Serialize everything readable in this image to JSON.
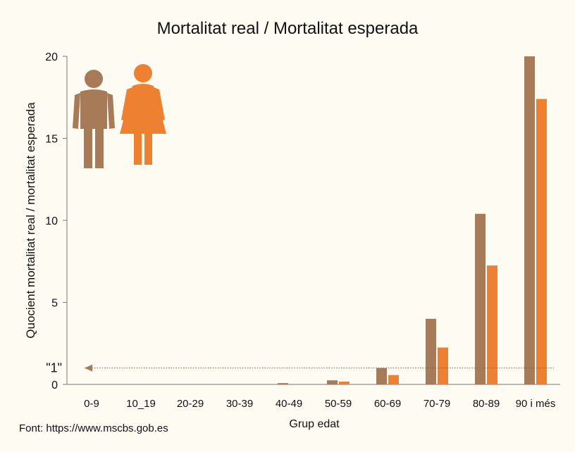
{
  "colors": {
    "background": "#FEFBF3",
    "male": "#A77B57",
    "female": "#ED8031",
    "axis": "#777777",
    "text": "#111111"
  },
  "icons": {
    "male": "man-icon",
    "female": "woman-icon"
  },
  "source_text": "Font: https://www.mscbs.gob.es",
  "chart_data": {
    "type": "bar",
    "title": "Mortalitat real /  Mortalitat esperada",
    "xlabel": "Grup edat",
    "ylabel": "Quocient mortalitat real / mortalitat esperada",
    "categories": [
      "0-9",
      "10_19",
      "20-29",
      "30-39",
      "40-49",
      "50-59",
      "60-69",
      "70-79",
      "80-89",
      "90 i més"
    ],
    "series": [
      {
        "values": [
          0,
          0,
          0,
          0,
          0.08,
          0.25,
          1.0,
          4.0,
          10.4,
          20.0
        ]
      },
      {
        "values": [
          0,
          0,
          0,
          0,
          0.0,
          0.17,
          0.57,
          2.25,
          7.25,
          17.4
        ]
      }
    ],
    "ylim": [
      0,
      20
    ],
    "yticks": [
      0,
      5,
      10,
      15,
      20
    ],
    "reference_line": {
      "value": 1,
      "label": "\"1\""
    },
    "grid": false
  }
}
